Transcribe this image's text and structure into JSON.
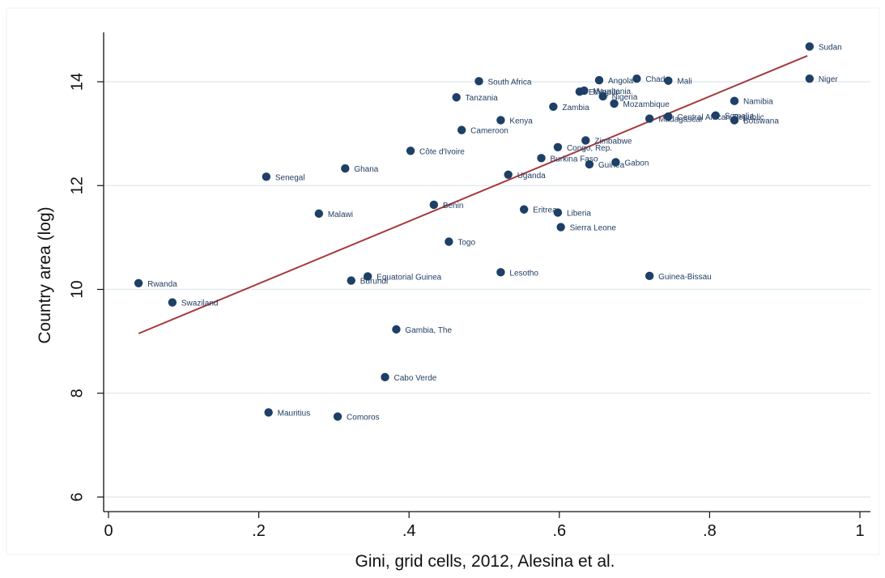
{
  "chart_data": {
    "type": "scatter",
    "title": "",
    "xlabel": "Gini, grid cells, 2012, Alesina et al.",
    "ylabel": "Country area (log)",
    "xlim": [
      0,
      1
    ],
    "ylim": [
      6,
      15
    ],
    "x_ticks": [
      {
        "value": 0,
        "label": "0"
      },
      {
        "value": 0.2,
        "label": ".2"
      },
      {
        "value": 0.4,
        "label": ".4"
      },
      {
        "value": 0.6,
        "label": ".6"
      },
      {
        "value": 0.8,
        "label": ".8"
      },
      {
        "value": 1,
        "label": "1"
      }
    ],
    "y_ticks": [
      {
        "value": 6,
        "label": "6"
      },
      {
        "value": 8,
        "label": "8"
      },
      {
        "value": 10,
        "label": "10"
      },
      {
        "value": 12,
        "label": "12"
      },
      {
        "value": 14,
        "label": "14"
      }
    ],
    "grid": "horizontal",
    "colors": {
      "points": "#1e3f66",
      "fit_line": "#a5383c",
      "grid": "#dfe8ec",
      "axis": "#111111"
    },
    "fit_line": {
      "x": [
        0.04,
        0.93
      ],
      "y": [
        9.15,
        14.5
      ]
    },
    "points": [
      {
        "label": "Rwanda",
        "x": 0.04,
        "y": 10.12
      },
      {
        "label": "Swaziland",
        "x": 0.085,
        "y": 9.75
      },
      {
        "label": "Senegal",
        "x": 0.21,
        "y": 12.17
      },
      {
        "label": "Mauritius",
        "x": 0.213,
        "y": 7.63
      },
      {
        "label": "Malawi",
        "x": 0.28,
        "y": 11.46
      },
      {
        "label": "Comoros",
        "x": 0.305,
        "y": 7.55
      },
      {
        "label": "Ghana",
        "x": 0.315,
        "y": 12.33
      },
      {
        "label": "Burundi",
        "x": 0.323,
        "y": 10.17
      },
      {
        "label": "Equatorial Guinea",
        "x": 0.345,
        "y": 10.25
      },
      {
        "label": "Cabo Verde",
        "x": 0.368,
        "y": 8.31
      },
      {
        "label": "Gambia, The",
        "x": 0.383,
        "y": 9.23
      },
      {
        "label": "Côte d'Ivoire",
        "x": 0.402,
        "y": 12.67
      },
      {
        "label": "Benin",
        "x": 0.433,
        "y": 11.63
      },
      {
        "label": "Togo",
        "x": 0.453,
        "y": 10.92
      },
      {
        "label": "Tanzania",
        "x": 0.463,
        "y": 13.7
      },
      {
        "label": "Cameroon",
        "x": 0.47,
        "y": 13.07
      },
      {
        "label": "South Africa",
        "x": 0.493,
        "y": 14.01
      },
      {
        "label": "Kenya",
        "x": 0.522,
        "y": 13.26
      },
      {
        "label": "Lesotho",
        "x": 0.522,
        "y": 10.33
      },
      {
        "label": "Uganda",
        "x": 0.532,
        "y": 12.21
      },
      {
        "label": "Eritrea",
        "x": 0.553,
        "y": 11.54
      },
      {
        "label": "Burkina Faso",
        "x": 0.576,
        "y": 12.53
      },
      {
        "label": "Zambia",
        "x": 0.592,
        "y": 13.52
      },
      {
        "label": "Congo, Rep.",
        "x": 0.598,
        "y": 12.74
      },
      {
        "label": "Liberia",
        "x": 0.598,
        "y": 11.48
      },
      {
        "label": "Sierra Leone",
        "x": 0.602,
        "y": 11.2
      },
      {
        "label": "Ethiopia",
        "x": 0.627,
        "y": 13.81
      },
      {
        "label": "Mauritania",
        "x": 0.633,
        "y": 13.83
      },
      {
        "label": "Zimbabwe",
        "x": 0.635,
        "y": 12.87
      },
      {
        "label": "Guinea",
        "x": 0.64,
        "y": 12.41
      },
      {
        "label": "Angola",
        "x": 0.653,
        "y": 14.03
      },
      {
        "label": "Nigeria",
        "x": 0.658,
        "y": 13.72
      },
      {
        "label": "Mozambique",
        "x": 0.673,
        "y": 13.58
      },
      {
        "label": "Gabon",
        "x": 0.675,
        "y": 12.45
      },
      {
        "label": "Chad",
        "x": 0.703,
        "y": 14.06
      },
      {
        "label": "Madagascar",
        "x": 0.72,
        "y": 13.29
      },
      {
        "label": "Guinea-Bissau",
        "x": 0.72,
        "y": 10.26
      },
      {
        "label": "Mali",
        "x": 0.745,
        "y": 14.02
      },
      {
        "label": "Central African Republic",
        "x": 0.745,
        "y": 13.33
      },
      {
        "label": "Somalia",
        "x": 0.808,
        "y": 13.35
      },
      {
        "label": "Namibia",
        "x": 0.833,
        "y": 13.63
      },
      {
        "label": "Botswana",
        "x": 0.833,
        "y": 13.26
      },
      {
        "label": "Sudan",
        "x": 0.933,
        "y": 14.68
      },
      {
        "label": "Niger",
        "x": 0.933,
        "y": 14.06
      }
    ]
  }
}
